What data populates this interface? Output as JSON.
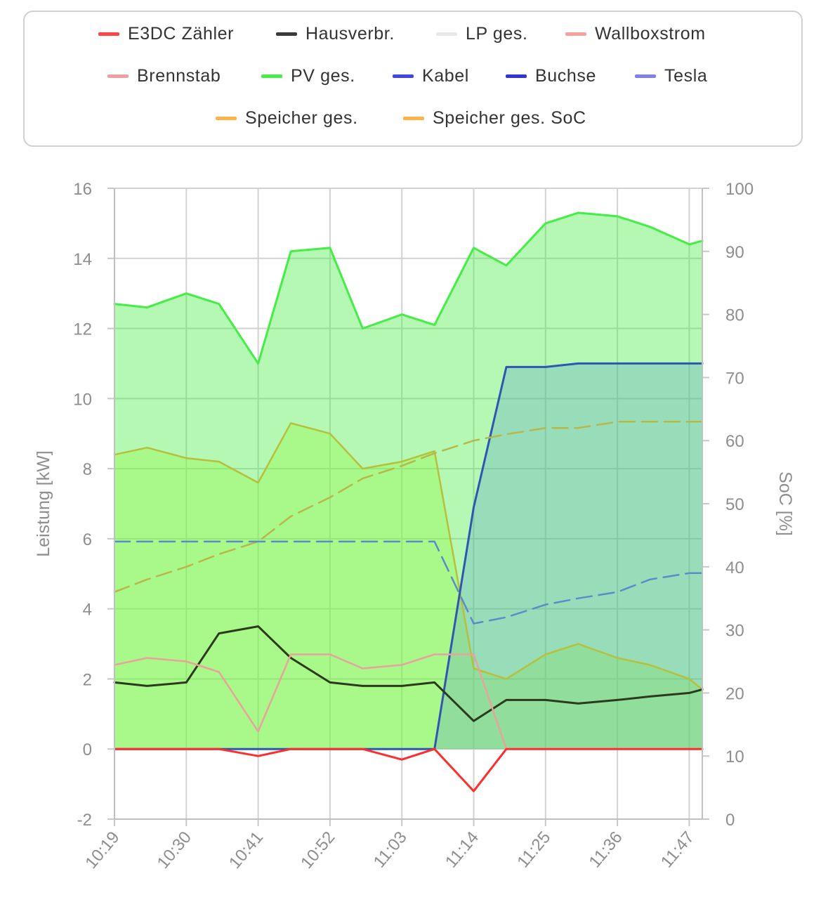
{
  "legend": [
    {
      "label": "E3DC Zähler",
      "color": "#ff4444"
    },
    {
      "label": "Hausverbr.",
      "color": "#3a3a3a"
    },
    {
      "label": "LP ges.",
      "color": "#e8e8e8"
    },
    {
      "label": "Wallboxstrom",
      "color": "#f8a0a0"
    },
    {
      "label": "Brennstab",
      "color": "#f0a0a0"
    },
    {
      "label": "PV ges.",
      "color": "#44ee44"
    },
    {
      "label": "Kabel",
      "color": "#4444ee"
    },
    {
      "label": "Buchse",
      "color": "#3333dd"
    },
    {
      "label": "Tesla",
      "color": "#8080ee"
    },
    {
      "label": "Speicher ges.",
      "color": "#ffb347"
    },
    {
      "label": "Speicher ges. SoC",
      "color": "#ffb347"
    }
  ],
  "chart_data": {
    "type": "line",
    "x": [
      "10:19",
      "10:24",
      "10:30",
      "10:35",
      "10:41",
      "10:46",
      "10:52",
      "10:57",
      "11:03",
      "11:08",
      "11:14",
      "11:19",
      "11:25",
      "11:30",
      "11:36",
      "11:41",
      "11:47",
      "11:49"
    ],
    "xticks": [
      "10:19",
      "10:30",
      "10:41",
      "10:52",
      "11:03",
      "11:14",
      "11:25",
      "11:36",
      "11:47"
    ],
    "ylabel": "Leistung [kW]",
    "y2label": "SoC [%]",
    "ylim": [
      -2,
      16
    ],
    "yticks": [
      "-2",
      "0",
      "2",
      "4",
      "6",
      "8",
      "10",
      "12",
      "14",
      "16"
    ],
    "y2lim": [
      0,
      100
    ],
    "y2ticks": [
      "0",
      "10",
      "20",
      "30",
      "40",
      "50",
      "60",
      "70",
      "80",
      "90",
      "100"
    ],
    "grid": true,
    "series": [
      {
        "name": "PV ges.",
        "axis": "left",
        "values": [
          12.7,
          12.6,
          13.0,
          12.7,
          11.0,
          14.2,
          14.3,
          12.0,
          12.4,
          12.1,
          14.3,
          13.8,
          15.0,
          15.3,
          15.2,
          14.9,
          14.4,
          14.5
        ]
      },
      {
        "name": "Speicher ges.",
        "axis": "left",
        "values": [
          8.4,
          8.6,
          8.3,
          8.2,
          7.6,
          9.3,
          9.0,
          8.0,
          8.2,
          8.5,
          2.3,
          2.0,
          2.7,
          3.0,
          2.6,
          2.4,
          2.0,
          1.7
        ]
      },
      {
        "name": "Buchse",
        "axis": "left",
        "values": [
          0,
          0,
          0,
          0,
          0,
          0,
          0,
          0,
          0,
          0,
          6.9,
          10.9,
          10.9,
          11.0,
          11.0,
          11.0,
          11.0,
          11.0
        ]
      },
      {
        "name": "Hausverbr.",
        "axis": "left",
        "values": [
          1.9,
          1.8,
          1.9,
          3.3,
          3.5,
          2.6,
          1.9,
          1.8,
          1.8,
          1.9,
          0.8,
          1.4,
          1.4,
          1.3,
          1.4,
          1.5,
          1.6,
          1.7
        ]
      },
      {
        "name": "Wallboxstrom",
        "axis": "left",
        "values": [
          2.4,
          2.6,
          2.5,
          2.2,
          0.5,
          2.7,
          2.7,
          2.3,
          2.4,
          2.7,
          2.7,
          0,
          0,
          0,
          0,
          0,
          0,
          0
        ]
      },
      {
        "name": "E3DC Zähler",
        "axis": "left",
        "values": [
          0.0,
          0.0,
          0.0,
          0.0,
          -0.2,
          0.0,
          0.0,
          0.0,
          -0.3,
          0.0,
          -1.2,
          0.0,
          0.0,
          0.0,
          0.0,
          0.0,
          0.0,
          0.0
        ]
      },
      {
        "name": "Speicher ges. SoC",
        "axis": "right",
        "values": [
          36,
          38,
          40,
          42,
          44,
          48,
          51,
          54,
          56,
          58,
          60,
          61,
          62,
          62,
          63,
          63,
          63,
          63
        ]
      },
      {
        "name": "Tesla",
        "axis": "right",
        "values": [
          44,
          44,
          44,
          44,
          44,
          44,
          44,
          44,
          44,
          44,
          31,
          32,
          34,
          35,
          36,
          38,
          39,
          39
        ]
      }
    ]
  }
}
